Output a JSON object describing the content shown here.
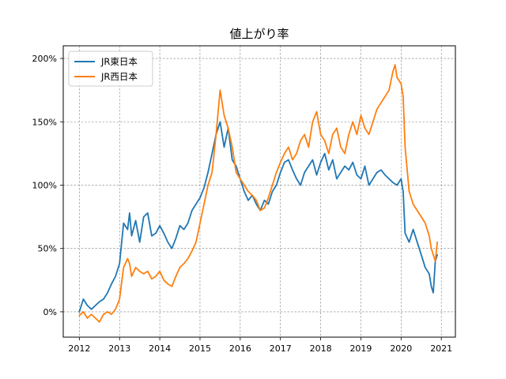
{
  "chart_data": {
    "type": "line",
    "title": "値上がり率",
    "xlabel": "",
    "ylabel": "",
    "xlim": [
      2011.6,
      2021.35
    ],
    "ylim": [
      -20,
      210
    ],
    "x_ticks": [
      "2012",
      "2013",
      "2014",
      "2015",
      "2016",
      "2017",
      "2018",
      "2019",
      "2020",
      "2021"
    ],
    "y_ticks": [
      {
        "value": 0,
        "label": "0%"
      },
      {
        "value": 50,
        "label": "50%"
      },
      {
        "value": 100,
        "label": "100%"
      },
      {
        "value": 150,
        "label": "150%"
      },
      {
        "value": 200,
        "label": "200%"
      }
    ],
    "grid": true,
    "legend_position": "top-left",
    "series": [
      {
        "name": "JR東日本",
        "color": "#1f77b4",
        "x": [
          2012.0,
          2012.1,
          2012.2,
          2012.3,
          2012.4,
          2012.5,
          2012.6,
          2012.7,
          2012.8,
          2012.9,
          2013.0,
          2013.1,
          2013.2,
          2013.25,
          2013.3,
          2013.4,
          2013.5,
          2013.6,
          2013.7,
          2013.8,
          2013.9,
          2014.0,
          2014.1,
          2014.2,
          2014.3,
          2014.4,
          2014.5,
          2014.6,
          2014.7,
          2014.8,
          2014.9,
          2015.0,
          2015.1,
          2015.2,
          2015.3,
          2015.4,
          2015.5,
          2015.6,
          2015.7,
          2015.8,
          2015.9,
          2016.0,
          2016.1,
          2016.2,
          2016.3,
          2016.4,
          2016.5,
          2016.6,
          2016.7,
          2016.8,
          2016.9,
          2017.0,
          2017.1,
          2017.2,
          2017.3,
          2017.4,
          2017.5,
          2017.6,
          2017.7,
          2017.8,
          2017.9,
          2018.0,
          2018.1,
          2018.2,
          2018.3,
          2018.4,
          2018.5,
          2018.6,
          2018.7,
          2018.8,
          2018.9,
          2019.0,
          2019.1,
          2019.2,
          2019.3,
          2019.4,
          2019.5,
          2019.6,
          2019.7,
          2019.8,
          2019.9,
          2020.0,
          2020.05,
          2020.1,
          2020.2,
          2020.3,
          2020.4,
          2020.5,
          2020.6,
          2020.7,
          2020.75,
          2020.8,
          2020.85,
          2020.9
        ],
        "y": [
          0,
          10,
          5,
          2,
          5,
          8,
          10,
          15,
          22,
          28,
          38,
          70,
          65,
          78,
          60,
          72,
          55,
          75,
          78,
          60,
          62,
          68,
          62,
          55,
          50,
          58,
          68,
          65,
          70,
          80,
          85,
          90,
          98,
          110,
          125,
          140,
          150,
          130,
          145,
          120,
          115,
          105,
          95,
          88,
          92,
          85,
          80,
          88,
          85,
          95,
          100,
          110,
          118,
          120,
          112,
          105,
          100,
          110,
          115,
          120,
          108,
          118,
          125,
          112,
          120,
          105,
          110,
          115,
          112,
          118,
          108,
          105,
          115,
          100,
          105,
          110,
          112,
          108,
          105,
          102,
          100,
          105,
          95,
          62,
          55,
          65,
          55,
          45,
          35,
          30,
          20,
          15,
          40,
          45
        ]
      },
      {
        "name": "JR西日本",
        "color": "#ff7f0e",
        "x": [
          2012.0,
          2012.1,
          2012.2,
          2012.3,
          2012.4,
          2012.5,
          2012.6,
          2012.7,
          2012.8,
          2012.9,
          2013.0,
          2013.1,
          2013.2,
          2013.25,
          2013.3,
          2013.4,
          2013.5,
          2013.6,
          2013.7,
          2013.8,
          2013.9,
          2014.0,
          2014.1,
          2014.2,
          2014.3,
          2014.4,
          2014.5,
          2014.6,
          2014.7,
          2014.8,
          2014.9,
          2015.0,
          2015.1,
          2015.2,
          2015.3,
          2015.4,
          2015.5,
          2015.6,
          2015.7,
          2015.8,
          2015.9,
          2016.0,
          2016.1,
          2016.2,
          2016.3,
          2016.4,
          2016.5,
          2016.6,
          2016.7,
          2016.8,
          2016.9,
          2017.0,
          2017.1,
          2017.2,
          2017.3,
          2017.4,
          2017.5,
          2017.6,
          2017.7,
          2017.8,
          2017.9,
          2018.0,
          2018.1,
          2018.2,
          2018.3,
          2018.4,
          2018.5,
          2018.6,
          2018.7,
          2018.8,
          2018.9,
          2019.0,
          2019.1,
          2019.2,
          2019.3,
          2019.4,
          2019.5,
          2019.6,
          2019.7,
          2019.8,
          2019.85,
          2019.9,
          2020.0,
          2020.05,
          2020.1,
          2020.2,
          2020.3,
          2020.4,
          2020.5,
          2020.6,
          2020.7,
          2020.75,
          2020.8,
          2020.85,
          2020.9
        ],
        "y": [
          -3,
          0,
          -5,
          -2,
          -5,
          -8,
          -2,
          0,
          -2,
          2,
          10,
          35,
          42,
          38,
          28,
          35,
          32,
          30,
          32,
          26,
          28,
          32,
          25,
          22,
          20,
          28,
          35,
          38,
          42,
          48,
          55,
          70,
          85,
          100,
          110,
          140,
          175,
          155,
          145,
          130,
          110,
          105,
          100,
          95,
          92,
          88,
          80,
          82,
          90,
          100,
          110,
          118,
          125,
          130,
          120,
          125,
          135,
          140,
          130,
          150,
          158,
          140,
          135,
          125,
          140,
          145,
          130,
          125,
          140,
          150,
          140,
          155,
          145,
          140,
          150,
          160,
          165,
          170,
          175,
          190,
          195,
          185,
          180,
          170,
          130,
          95,
          85,
          80,
          75,
          70,
          60,
          50,
          45,
          40,
          55
        ]
      }
    ]
  }
}
